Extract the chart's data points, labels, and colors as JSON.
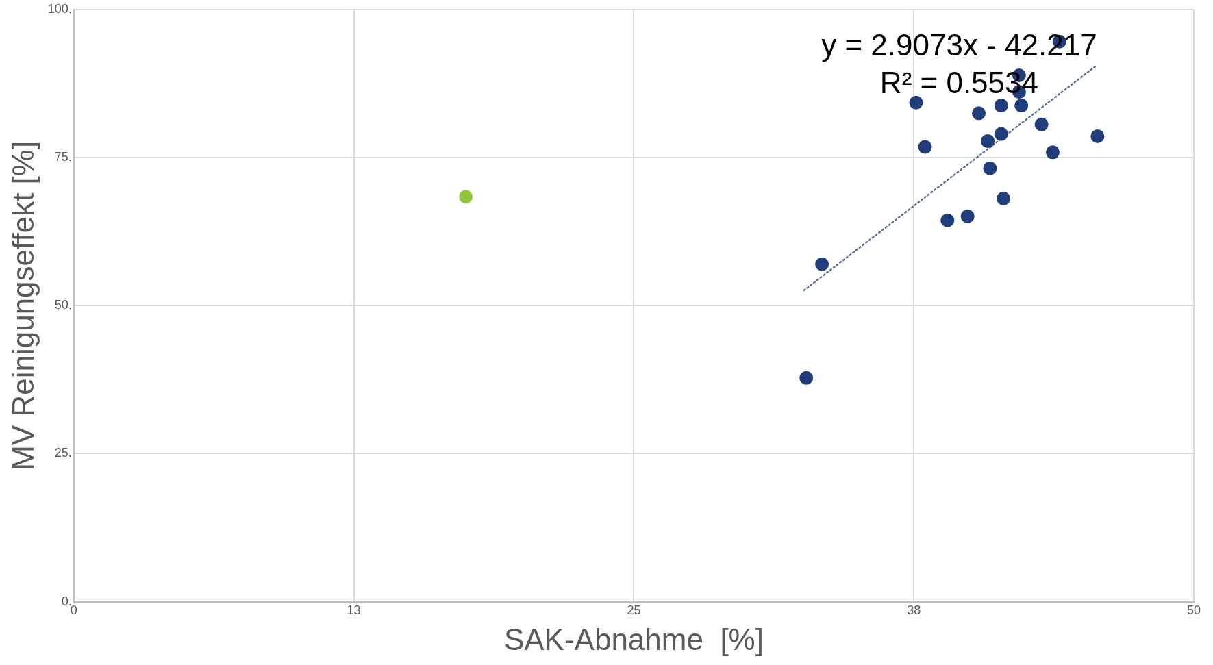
{
  "chart_data": {
    "type": "scatter",
    "xlabel": "SAK-Abnahme  [%]",
    "ylabel": "MV Reinigungseffekt [%]",
    "xlim": [
      0,
      50
    ],
    "xticks": [
      0,
      {
        "value": 12.5,
        "label": "13"
      },
      25,
      {
        "value": 37.5,
        "label": "38"
      },
      50
    ],
    "ylim": [
      0,
      100
    ],
    "yticks": [
      {
        "value": 0,
        "label": "0."
      },
      {
        "value": 25,
        "label": "25."
      },
      {
        "value": 50,
        "label": "50."
      },
      {
        "value": 75,
        "label": "75."
      },
      {
        "value": 100,
        "label": "100."
      }
    ],
    "grid": true,
    "legend": false,
    "marker": "circle",
    "annotations": [
      "y = 2.9073x - 42.217",
      "R² = 0.5534"
    ],
    "series": [
      {
        "type": "scatter",
        "x": [
          17.5,
          32.7,
          33.4,
          37.6,
          38.0,
          39.0,
          39.9,
          40.4,
          40.8,
          40.9,
          41.4,
          41.4,
          41.5,
          42.2,
          42.2,
          42.3,
          43.2,
          43.7,
          44.0,
          45.7
        ],
        "values": [
          68.4,
          37.8,
          57.0,
          84.3,
          76.8,
          64.4,
          65.1,
          82.5,
          77.8,
          73.2,
          83.8,
          79.0,
          68.1,
          86.1,
          88.9,
          83.8,
          80.6,
          75.9,
          94.6,
          78.6
        ],
        "colors": [
          "#8dc63f",
          "#1f3d7a",
          "#1f3d7a",
          "#1f3d7a",
          "#1f3d7a",
          "#1f3d7a",
          "#1f3d7a",
          "#1f3d7a",
          "#1f3d7a",
          "#1f3d7a",
          "#1f3d7a",
          "#1f3d7a",
          "#1f3d7a",
          "#1f3d7a",
          "#1f3d7a",
          "#1f3d7a",
          "#1f3d7a",
          "#1f3d7a",
          "#1f3d7a",
          "#1f3d7a"
        ]
      },
      {
        "type": "line",
        "x": [
          32.6,
          45.6
        ],
        "values": [
          52.6,
          90.4
        ],
        "color": "#5a6f9e",
        "line_style": "dotted",
        "marker": "none"
      }
    ]
  }
}
